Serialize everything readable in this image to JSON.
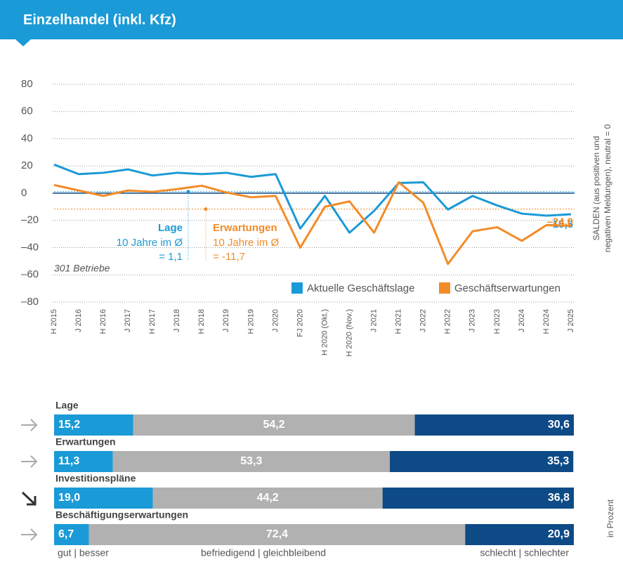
{
  "header": {
    "title": "Einzelhandel (inkl. Kfz)"
  },
  "chart_data": [
    {
      "type": "line",
      "y_label": [
        "SALDEN (aus positiven und",
        "negativen Meldungen), neutral = 0"
      ],
      "note": "301 Betriebe",
      "categories": [
        "H 2015",
        "J 2016",
        "H 2016",
        "J 2017",
        "H 2017",
        "J 2018",
        "H 2018",
        "J 2019",
        "H 2019",
        "J 2020",
        "FJ 2020",
        "H 2020 (Okt.)",
        "H 2020 (Nov.)",
        "J 2021",
        "H 2021",
        "J 2022",
        "H 2022",
        "J 2023",
        "H 2023",
        "J 2024",
        "H 2024",
        "J 2025"
      ],
      "series": [
        {
          "name": "Aktuelle Geschäftslage",
          "color": "#1a9ad6",
          "values": [
            21,
            14,
            15,
            17.5,
            13,
            15,
            14,
            15,
            12,
            14,
            -26,
            -2,
            -29,
            -13,
            7.5,
            8,
            -12,
            -2,
            -9,
            -15,
            -16.5,
            -15.5
          ],
          "end_label": "–15,5"
        },
        {
          "name": "Geschäftserwartungen",
          "color": "#f28c28",
          "values": [
            6,
            2,
            -2,
            2,
            1,
            3,
            5.5,
            0.5,
            -3,
            -2,
            -40,
            -10,
            -6,
            -29,
            8,
            -7,
            -52,
            -28,
            -25,
            -35,
            -23.5,
            -24.0
          ],
          "end_label": "–24,0"
        }
      ],
      "references": [
        {
          "name": "Lage",
          "note": "10 Jahre im Ø",
          "label": "= 1,1",
          "value": 1.1,
          "color": "#1a9ad6"
        },
        {
          "name": "Erwartungen",
          "note": "10 Jahre im Ø",
          "label": "= -11,7",
          "value": -11.7,
          "color": "#f28c28"
        }
      ],
      "ylim": [
        -80,
        80
      ],
      "yticks": [
        {
          "value": -80,
          "label": "–80"
        },
        {
          "value": -60,
          "label": "–60"
        },
        {
          "value": -40,
          "label": "–40"
        },
        {
          "value": -20,
          "label": "–20"
        },
        0,
        20,
        40,
        60,
        80
      ],
      "grid": true
    },
    {
      "type": "stacked_bar_h",
      "categories": [
        "Lage",
        "Erwartungen",
        "Investitionspläne",
        "Beschäftigungserwartungen"
      ],
      "trend": [
        "right",
        "right",
        "down-right",
        "right"
      ],
      "unit_label": "in Prozent",
      "xlim": [
        0,
        100
      ],
      "series": [
        {
          "name": "gut | besser",
          "color": "#1a9ad6",
          "values": [
            15.2,
            11.3,
            19.0,
            6.7
          ],
          "value_labels": [
            "15,2",
            "11,3",
            "19,0",
            "6,7"
          ]
        },
        {
          "name": "befriedigend | gleichbleibend",
          "color": "#b1b1b1",
          "values": [
            54.2,
            53.3,
            44.2,
            72.4
          ],
          "value_labels": [
            "54,2",
            "53,3",
            "44,2",
            "72,4"
          ]
        },
        {
          "name": "schlecht | schlechter",
          "color": "#0d4a86",
          "values": [
            30.6,
            35.3,
            36.8,
            20.9
          ],
          "value_labels": [
            "30,6",
            "35,3",
            "36,8",
            "20,9"
          ]
        }
      ]
    }
  ]
}
